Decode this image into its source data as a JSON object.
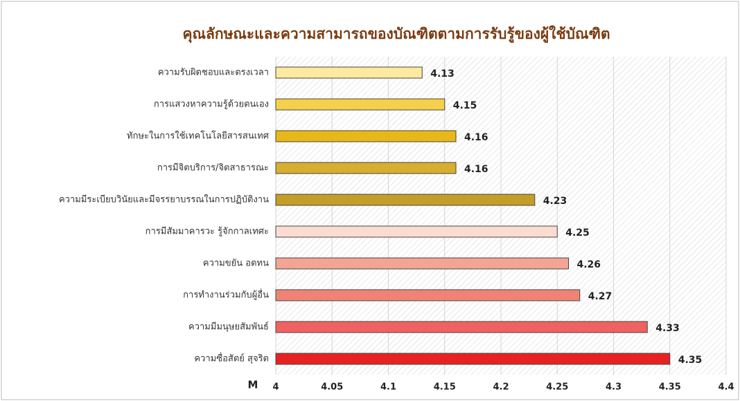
{
  "chart_data": {
    "type": "bar",
    "orientation": "horizontal",
    "title": "คุณลักษณะและความสามารถของบัณฑิตตามการรับรู้ของผู้ใช้บัณฑิต",
    "xlabel": "M",
    "categories": [
      "ความรับผิดชอบและตรงเวลา",
      "การแสวงหาความรู้ด้วยตนเอง",
      "ทักษะในการใช้เทคโนโลยีสารสนเทศ",
      "การมีจิตบริการ/จิตสาธารณะ",
      "ความมีระเบียบวินัยและมีจรรยาบรรณในการปฏิบัติงาน",
      "การมีสัมมาคารวะ รู้จักกาลเทศะ",
      "ความขยัน อดทน",
      "การทำงานร่วมกับผู้อื่น",
      "ความมีมนุษยสัมพันธ์",
      "ความซื่อสัตย์ สุจริต"
    ],
    "values": [
      4.13,
      4.15,
      4.16,
      4.16,
      4.23,
      4.25,
      4.26,
      4.27,
      4.33,
      4.35
    ],
    "colors": [
      "#fde9a0",
      "#f6d04a",
      "#e8b818",
      "#d8ae2e",
      "#c49e26",
      "#fcdcd0",
      "#f4a494",
      "#f08474",
      "#f06262",
      "#e82222"
    ],
    "xlim": [
      4,
      4.4
    ],
    "xticks": [
      4,
      4.05,
      4.1,
      4.15,
      4.2,
      4.25,
      4.3,
      4.35,
      4.4
    ],
    "grid": true
  }
}
